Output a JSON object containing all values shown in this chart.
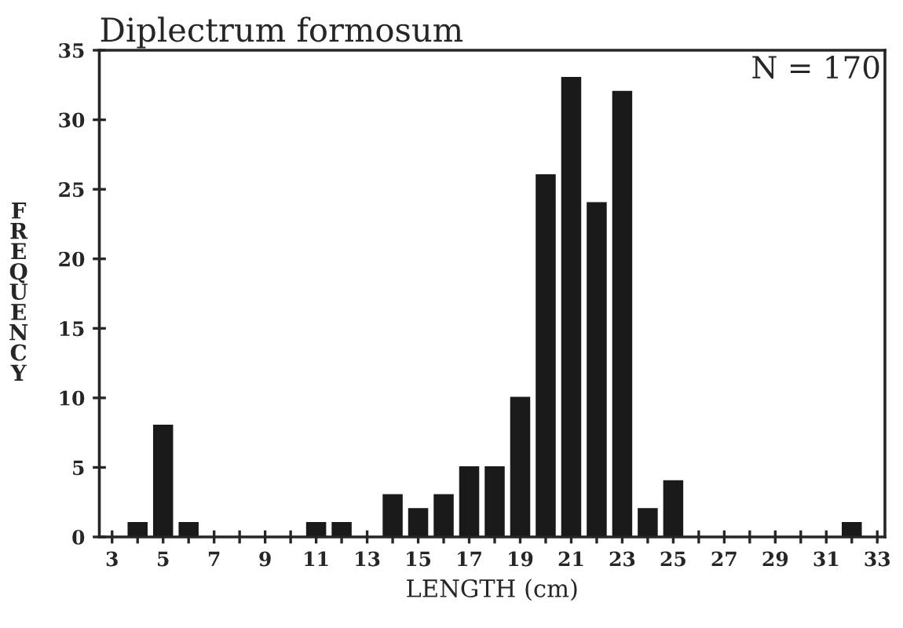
{
  "chart_data": {
    "type": "bar",
    "title": "Diplectrum formosum",
    "xlabel": "LENGTH (cm)",
    "ylabel": "FREQUENCY",
    "annotations": [
      "N = 170"
    ],
    "x": [
      4,
      5,
      6,
      11,
      12,
      14,
      15,
      16,
      17,
      18,
      19,
      20,
      21,
      22,
      23,
      24,
      25,
      32
    ],
    "values": [
      1,
      8,
      1,
      1,
      1,
      3,
      2,
      3,
      5,
      5,
      10,
      26,
      33,
      24,
      32,
      2,
      4,
      1
    ],
    "color": "#1a1a1a",
    "xlim": [
      2.5,
      33.3
    ],
    "xticks": [
      3,
      {
        "value": 4,
        "label": null
      },
      5,
      {
        "value": 6,
        "label": null
      },
      7,
      {
        "value": 8,
        "label": null
      },
      9,
      {
        "value": 10,
        "label": null
      },
      11,
      {
        "value": 12,
        "label": null
      },
      13,
      {
        "value": 14,
        "label": null
      },
      15,
      {
        "value": 16,
        "label": null
      },
      17,
      {
        "value": 18,
        "label": null
      },
      19,
      {
        "value": 20,
        "label": null
      },
      21,
      {
        "value": 22,
        "label": null
      },
      23,
      {
        "value": 24,
        "label": null
      },
      25,
      {
        "value": 26,
        "label": null
      },
      27,
      {
        "value": 28,
        "label": null
      },
      29,
      {
        "value": 30,
        "label": null
      },
      31,
      {
        "value": 32,
        "label": null
      },
      33
    ],
    "ylim": [
      0,
      35
    ],
    "yticks": [
      0,
      5,
      10,
      15,
      20,
      25,
      30,
      35
    ],
    "grid": false,
    "legend": false
  }
}
